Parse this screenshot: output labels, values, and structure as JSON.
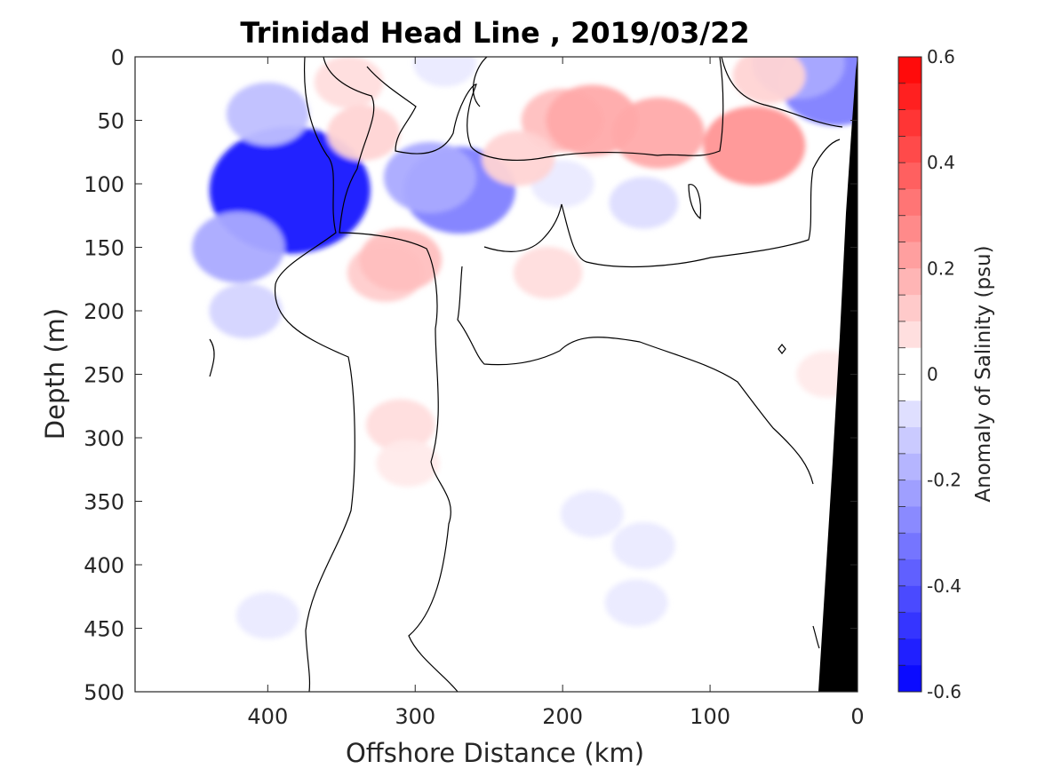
{
  "chart_data": {
    "type": "heatmap",
    "title": "Trinidad Head Line , 2019/03/22",
    "xlabel": "Offshore Distance (km)",
    "ylabel": "Depth (m)",
    "xlim": [
      490,
      0
    ],
    "ylim": [
      0,
      500
    ],
    "x_ticks": [
      "400",
      "300",
      "200",
      "100",
      "0"
    ],
    "x_tick_values": [
      400,
      300,
      200,
      100,
      0
    ],
    "y_ticks": [
      "0",
      "50",
      "100",
      "150",
      "200",
      "250",
      "300",
      "350",
      "400",
      "450",
      "500"
    ],
    "y_tick_values": [
      0,
      50,
      100,
      150,
      200,
      250,
      300,
      350,
      400,
      450,
      500
    ],
    "colorbar": {
      "label": "Anomaly of Salinity (psu)",
      "range": [
        -0.6,
        0.6
      ],
      "step": 0.05,
      "tick_labels": [
        "0.6",
        "0.4",
        "0.2",
        "0",
        "-0.2",
        "-0.4",
        "-0.6"
      ],
      "tick_values": [
        0.6,
        0.4,
        0.2,
        0,
        -0.2,
        -0.4,
        -0.6
      ],
      "negative_color": "#0000ff",
      "positive_color": "#ff0000",
      "zero_color": "#ffffff"
    },
    "data_extent_x": [
      440,
      0
    ],
    "zero_contour_color": "#000000",
    "bathymetry_color": "#000000",
    "bathymetry_edge": [
      {
        "x": 0,
        "depth": 0
      },
      {
        "x": 25,
        "depth": 500
      }
    ],
    "anomaly_features": [
      {
        "x": 385,
        "depth": 105,
        "value": -0.55
      },
      {
        "x": 400,
        "depth": 45,
        "value": -0.15
      },
      {
        "x": 420,
        "depth": 150,
        "value": -0.2
      },
      {
        "x": 415,
        "depth": 200,
        "value": -0.1
      },
      {
        "x": 270,
        "depth": 105,
        "value": -0.3
      },
      {
        "x": 290,
        "depth": 95,
        "value": -0.2
      },
      {
        "x": 280,
        "depth": 5,
        "value": -0.05
      },
      {
        "x": 15,
        "depth": 20,
        "value": -0.3
      },
      {
        "x": 40,
        "depth": 5,
        "value": -0.2
      },
      {
        "x": 145,
        "depth": 115,
        "value": -0.08
      },
      {
        "x": 200,
        "depth": 100,
        "value": -0.05
      },
      {
        "x": 180,
        "depth": 360,
        "value": -0.05
      },
      {
        "x": 145,
        "depth": 385,
        "value": -0.05
      },
      {
        "x": 150,
        "depth": 430,
        "value": -0.05
      },
      {
        "x": 400,
        "depth": 440,
        "value": -0.05
      },
      {
        "x": 345,
        "depth": 20,
        "value": 0.08
      },
      {
        "x": 335,
        "depth": 60,
        "value": 0.1
      },
      {
        "x": 320,
        "depth": 170,
        "value": 0.12
      },
      {
        "x": 310,
        "depth": 160,
        "value": 0.15
      },
      {
        "x": 310,
        "depth": 290,
        "value": 0.08
      },
      {
        "x": 305,
        "depth": 320,
        "value": 0.05
      },
      {
        "x": 210,
        "depth": 170,
        "value": 0.08
      },
      {
        "x": 200,
        "depth": 50,
        "value": 0.15
      },
      {
        "x": 180,
        "depth": 50,
        "value": 0.2
      },
      {
        "x": 135,
        "depth": 60,
        "value": 0.2
      },
      {
        "x": 70,
        "depth": 70,
        "value": 0.25
      },
      {
        "x": 60,
        "depth": 15,
        "value": 0.1
      },
      {
        "x": 230,
        "depth": 80,
        "value": 0.1
      },
      {
        "x": 20,
        "depth": 250,
        "value": 0.05
      }
    ]
  }
}
